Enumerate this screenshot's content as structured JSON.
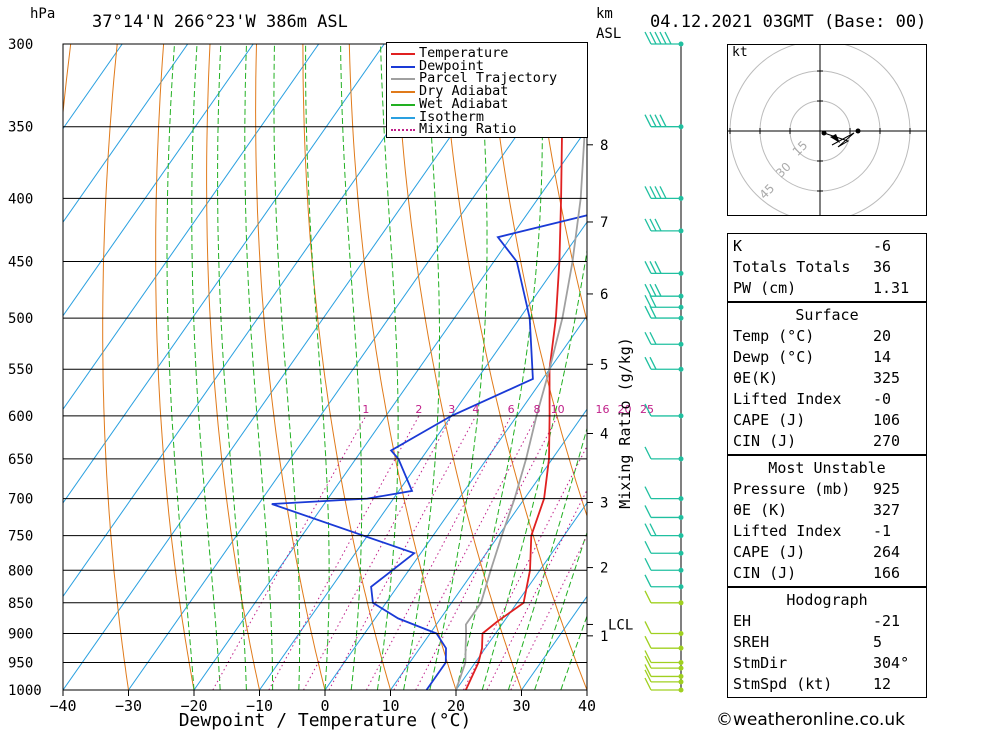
{
  "header": {
    "pressure_unit": "hPa",
    "location": "37°14'N  266°23'W  386m  ASL",
    "height_unit_km": "km",
    "height_unit_asl": "ASL",
    "datetime": "04.12.2021  03GMT  (Base: 00)"
  },
  "colors": {
    "temperature": "#e02020",
    "dewpoint": "#1a3ad6",
    "parcel": "#a0a0a0",
    "dry_adiabat": "#e07a1a",
    "wet_adiabat": "#22b022",
    "isotherm": "#2aa0e0",
    "mixing_ratio": "#c0208a",
    "wind": "#20c0a0",
    "wind_low": "#a0d020"
  },
  "legend": [
    {
      "label": "Temperature",
      "color": "#e02020",
      "style": "solid"
    },
    {
      "label": "Dewpoint",
      "color": "#1a3ad6",
      "style": "solid"
    },
    {
      "label": "Parcel Trajectory",
      "color": "#a0a0a0",
      "style": "solid"
    },
    {
      "label": "Dry Adiabat",
      "color": "#e07a1a",
      "style": "solid"
    },
    {
      "label": "Wet Adiabat",
      "color": "#22b022",
      "style": "solid"
    },
    {
      "label": "Isotherm",
      "color": "#2aa0e0",
      "style": "solid"
    },
    {
      "label": "Mixing Ratio",
      "color": "#c0208a",
      "style": "dotted"
    }
  ],
  "chart_data": {
    "type": "line",
    "chart_kind": "skew-T log-P sounding",
    "xlabel": "Dewpoint / Temperature (°C)",
    "ylabel": "hPa",
    "xlim": [
      -40,
      40
    ],
    "ylim": [
      1000,
      300
    ],
    "y_scale": "log",
    "x_ticks": [
      "−40",
      "−30",
      "−20",
      "−10",
      "0",
      "10",
      "20",
      "30",
      "40"
    ],
    "x_tick_values": [
      -40,
      -30,
      -20,
      -10,
      0,
      10,
      20,
      30,
      40
    ],
    "y_ticks": [
      1000,
      950,
      900,
      850,
      800,
      750,
      700,
      650,
      600,
      550,
      500,
      450,
      400,
      350,
      300
    ],
    "km_ticks": [
      {
        "label": "1",
        "p": 904
      },
      {
        "label": "2",
        "p": 796
      },
      {
        "label": "3",
        "p": 705
      },
      {
        "label": "4",
        "p": 620
      },
      {
        "label": "5",
        "p": 545
      },
      {
        "label": "6",
        "p": 478
      },
      {
        "label": "7",
        "p": 418
      },
      {
        "label": "8",
        "p": 362
      }
    ],
    "lcl": {
      "label": "LCL",
      "p": 885
    },
    "mixing_ratio_axis_label": "Mixing Ratio (g/kg)",
    "mixing_ratio_labels": [
      "1",
      "2",
      "3",
      "4",
      "6",
      "8",
      "10",
      "16",
      "20",
      "25"
    ],
    "mixing_ratio_values": [
      1,
      2,
      3,
      4,
      6,
      8,
      10,
      16,
      20,
      25
    ],
    "mixing_ratio_label_p": 600,
    "series": [
      {
        "name": "Temperature",
        "points": [
          [
            1000,
            21.5
          ],
          [
            950,
            20.5
          ],
          [
            925,
            19.5
          ],
          [
            900,
            18.0
          ],
          [
            880,
            19.0
          ],
          [
            850,
            21.0
          ],
          [
            800,
            18.5
          ],
          [
            750,
            15.0
          ],
          [
            700,
            13.0
          ],
          [
            650,
            9.5
          ],
          [
            600,
            5.0
          ],
          [
            550,
            0.0
          ],
          [
            500,
            -4.5
          ],
          [
            450,
            -10.0
          ],
          [
            400,
            -16.5
          ],
          [
            350,
            -24.0
          ],
          [
            300,
            -32.5
          ]
        ]
      },
      {
        "name": "Dewpoint",
        "points": [
          [
            1000,
            15.5
          ],
          [
            950,
            15.5
          ],
          [
            925,
            14.0
          ],
          [
            900,
            11.0
          ],
          [
            875,
            3.5
          ],
          [
            850,
            -2.0
          ],
          [
            825,
            -4.0
          ],
          [
            775,
            -1.0
          ],
          [
            707,
            -28.0
          ],
          [
            700,
            -14.0
          ],
          [
            690,
            -8.0
          ],
          [
            650,
            -13.5
          ],
          [
            640,
            -15.5
          ],
          [
            600,
            -10.0
          ],
          [
            560,
            -1.5
          ],
          [
            500,
            -8.5
          ],
          [
            450,
            -16.5
          ],
          [
            430,
            -22.0
          ],
          [
            400,
            -2.0
          ],
          [
            350,
            -3.0
          ],
          [
            300,
            -9.0
          ]
        ]
      },
      {
        "name": "Parcel Trajectory",
        "points": [
          [
            1000,
            20.0
          ],
          [
            950,
            18.5
          ],
          [
            925,
            17.0
          ],
          [
            900,
            15.5
          ],
          [
            885,
            14.5
          ],
          [
            850,
            14.5
          ],
          [
            800,
            12.5
          ],
          [
            750,
            10.5
          ],
          [
            700,
            8.5
          ],
          [
            650,
            6.0
          ],
          [
            600,
            3.0
          ],
          [
            550,
            0.0
          ],
          [
            500,
            -3.5
          ],
          [
            450,
            -8.0
          ],
          [
            400,
            -13.5
          ],
          [
            350,
            -20.5
          ],
          [
            300,
            -29.5
          ]
        ]
      }
    ]
  },
  "winds": {
    "levels": [
      1000,
      985,
      975,
      960,
      950,
      925,
      900,
      850,
      825,
      800,
      775,
      750,
      725,
      700,
      650,
      600,
      550,
      525,
      500,
      490,
      480,
      460,
      425,
      400,
      350,
      300
    ],
    "speeds_kt": [
      8,
      8,
      8,
      8,
      10,
      10,
      10,
      12,
      12,
      13,
      14,
      15,
      14,
      13,
      12,
      12,
      15,
      18,
      20,
      22,
      25,
      28,
      32,
      35,
      40,
      45
    ]
  },
  "hodograph": {
    "unit": "kt",
    "ring_labels": [
      "15",
      "30",
      "45"
    ]
  },
  "indices": {
    "top": [
      {
        "key": "K",
        "value": "-6"
      },
      {
        "key": "Totals Totals",
        "value": "36"
      },
      {
        "key": "PW (cm)",
        "value": "1.31"
      }
    ],
    "surface_title": "Surface",
    "surface": [
      {
        "key": "Temp (°C)",
        "value": "20"
      },
      {
        "key": "Dewp (°C)",
        "value": "14"
      },
      {
        "key": "θE(K)",
        "value": "325"
      },
      {
        "key": "Lifted Index",
        "value": "-0"
      },
      {
        "key": "CAPE (J)",
        "value": "106"
      },
      {
        "key": "CIN (J)",
        "value": "270"
      }
    ],
    "unstable_title": "Most Unstable",
    "unstable": [
      {
        "key": "Pressure (mb)",
        "value": "925"
      },
      {
        "key": "θE (K)",
        "value": "327"
      },
      {
        "key": "Lifted Index",
        "value": "-1"
      },
      {
        "key": "CAPE (J)",
        "value": "264"
      },
      {
        "key": "CIN (J)",
        "value": "166"
      }
    ],
    "hodo_title": "Hodograph",
    "hodo": [
      {
        "key": "EH",
        "value": "-21"
      },
      {
        "key": "SREH",
        "value": "5"
      },
      {
        "key": "StmDir",
        "value": "304°"
      },
      {
        "key": "StmSpd (kt)",
        "value": "12"
      }
    ]
  },
  "copyright": "©weatheronline.co.uk"
}
